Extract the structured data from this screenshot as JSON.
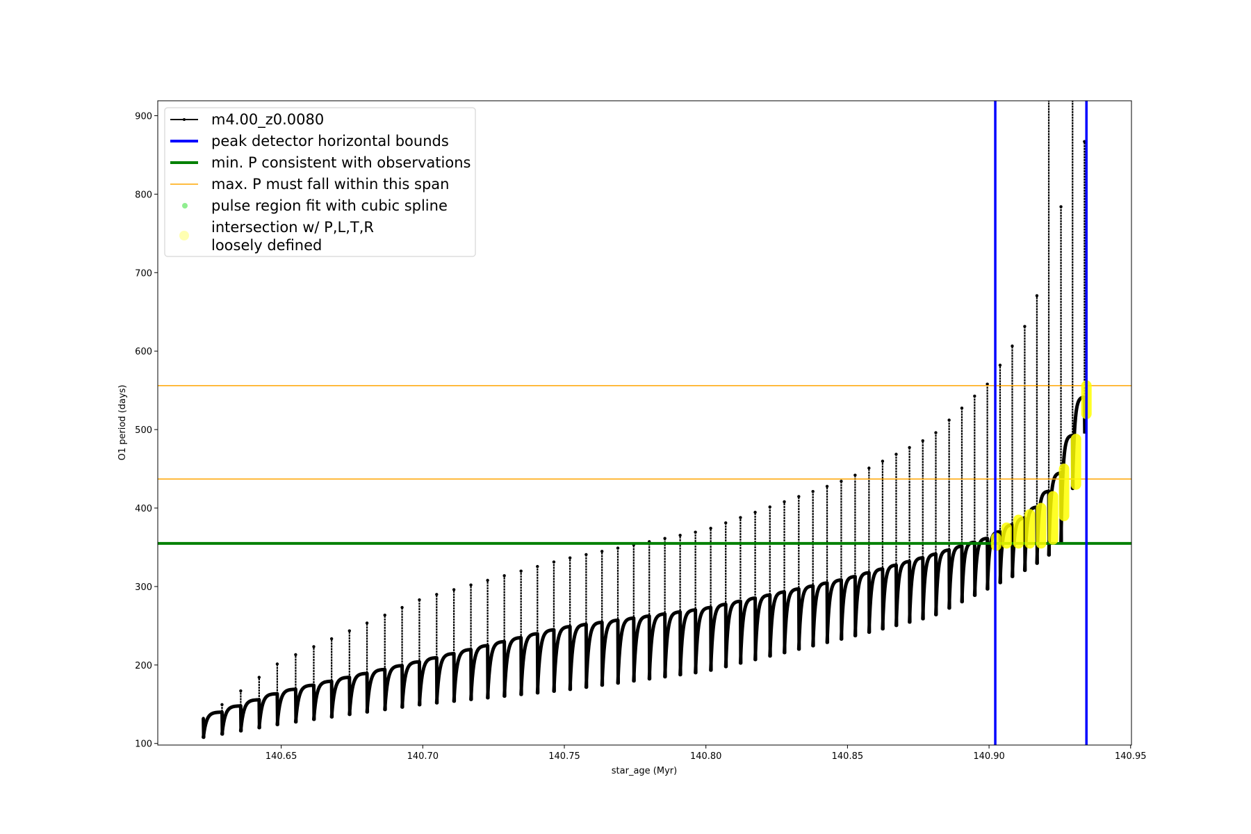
{
  "chart_data": {
    "type": "scatter",
    "title": "",
    "xlabel": "star_age (Myr)",
    "ylabel": "O1 period (days)",
    "xlim": [
      140.6064,
      140.9503
    ],
    "ylim": [
      98,
      919
    ],
    "xticks": [
      140.65,
      140.7,
      140.75,
      140.8,
      140.85,
      140.9,
      140.95
    ],
    "xtick_labels": [
      "140.65",
      "140.70",
      "140.75",
      "140.80",
      "140.85",
      "140.90",
      "140.95"
    ],
    "yticks": [
      100,
      200,
      300,
      400,
      500,
      600,
      700,
      800,
      900
    ],
    "ytick_labels": [
      "100",
      "200",
      "300",
      "400",
      "500",
      "600",
      "700",
      "800",
      "900"
    ],
    "grid": false,
    "legend_position": "top-left",
    "legend": [
      {
        "label": "m4.00_z0.0080",
        "kind": "line-marker",
        "color": "#000000"
      },
      {
        "label": "peak detector horizontal bounds",
        "kind": "thick-line",
        "color": "#0000ff"
      },
      {
        "label": "min. P consistent with observations",
        "kind": "thick-line",
        "color": "#008000"
      },
      {
        "label": "max. P must fall within this span",
        "kind": "thin-line",
        "color": "#ffa500"
      },
      {
        "label": "pulse region fit with cubic spline",
        "kind": "dot",
        "color": "#90ee90"
      },
      {
        "label": "intersection w/ P,L,T,R",
        "label2": "loosely defined",
        "kind": "big-dot",
        "color": "#ffff00"
      }
    ],
    "series": {
      "name": "m4.00_z0.0080",
      "color": "#000000",
      "pulse_ages": [
        140.6225,
        140.6291,
        140.6357,
        140.6422,
        140.6486,
        140.6551,
        140.6615,
        140.6678,
        140.6741,
        140.6803,
        140.6866,
        140.6927,
        140.6988,
        140.7049,
        140.711,
        140.717,
        140.7229,
        140.7288,
        140.7347,
        140.7405,
        140.7463,
        140.752,
        140.7577,
        140.7633,
        140.7689,
        140.7745,
        140.78,
        140.7855,
        140.7909,
        140.7963,
        140.8017,
        140.807,
        140.8122,
        140.8174,
        140.8226,
        140.8277,
        140.8328,
        140.8378,
        140.8428,
        140.8478,
        140.8527,
        140.8576,
        140.8624,
        140.8672,
        140.8719,
        140.8766,
        140.8812,
        140.8859,
        140.8904,
        140.8949,
        140.8994,
        140.9039,
        140.9082,
        140.9126,
        140.9169,
        140.9211,
        140.9254,
        140.9295,
        140.9337
      ],
      "envelope_ages": [
        140.6225,
        140.65,
        140.7,
        140.75,
        140.8,
        140.85,
        140.88,
        140.9,
        140.915,
        140.925,
        140.934
      ],
      "envelope_top": [
        132,
        165,
        205,
        248,
        272,
        310,
        340,
        362,
        392,
        440,
        545
      ],
      "envelope_dip": [
        108,
        125,
        150,
        168,
        192,
        235,
        262,
        298,
        325,
        350,
        500
      ],
      "envelope_spike": [
        132,
        205,
        285,
        335,
        372,
        437,
        492,
        560,
        645,
        780,
        870
      ],
      "clipped_spike_ages": [
        140.9211,
        140.9295
      ]
    },
    "vertical_lines": [
      {
        "name": "peak detector horizontal bounds",
        "x": 140.9022,
        "color": "#0000ff"
      },
      {
        "name": "peak detector horizontal bounds",
        "x": 140.9344,
        "color": "#0000ff"
      }
    ],
    "horizontal_lines": [
      {
        "name": "min. P consistent with observations",
        "y": 355,
        "color": "#008000"
      },
      {
        "name": "max. P must fall within this span (lower)",
        "y": 437,
        "color": "#ffa500"
      },
      {
        "name": "max. P must fall within this span (upper)",
        "y": 556,
        "color": "#ffa500"
      }
    ],
    "intersection_regions": [
      [
        140.9025,
        352,
        362
      ],
      [
        140.9062,
        355,
        375
      ],
      [
        140.9104,
        355,
        385
      ],
      [
        140.9144,
        355,
        392
      ],
      [
        140.9184,
        355,
        400
      ],
      [
        140.9226,
        360,
        415
      ],
      [
        140.9265,
        390,
        450
      ],
      [
        140.9307,
        430,
        488
      ],
      [
        140.9344,
        520,
        556
      ]
    ]
  }
}
